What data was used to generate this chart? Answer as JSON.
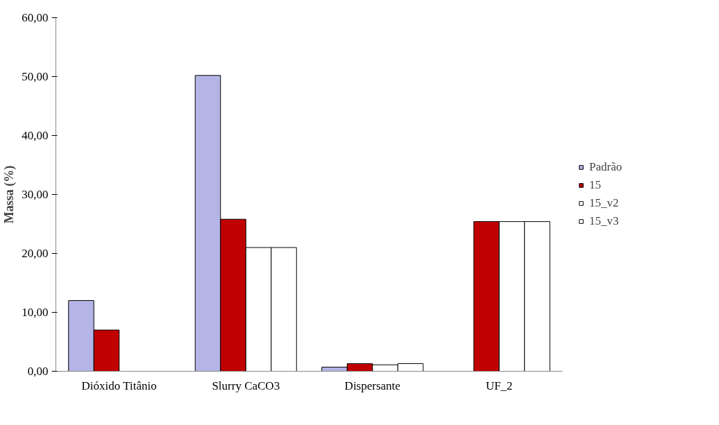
{
  "chart_data": {
    "type": "bar",
    "ylabel": "Massa (%)",
    "categories": [
      "Dióxido Titânio",
      "Slurry CaCO3",
      "Dispersante",
      "UF_2"
    ],
    "series": [
      {
        "name": "Padrão",
        "color": "#b4b4e6",
        "values": [
          12.0,
          50.2,
          0.7,
          null
        ]
      },
      {
        "name": "15",
        "color": "#c00000",
        "values": [
          7.0,
          25.8,
          1.3,
          25.4
        ]
      },
      {
        "name": "15_v2",
        "color": "#ffffff",
        "values": [
          null,
          21.0,
          1.1,
          25.4
        ]
      },
      {
        "name": "15_v3",
        "color": "#ffffff",
        "values": [
          null,
          21.0,
          1.3,
          25.4
        ]
      }
    ],
    "ylim": [
      0,
      60
    ],
    "yticks": [
      {
        "value": 0,
        "label": "0,00"
      },
      {
        "value": 10,
        "label": "10,00"
      },
      {
        "value": 20,
        "label": "20,00"
      },
      {
        "value": 30,
        "label": "30,00"
      },
      {
        "value": 40,
        "label": "40,00"
      },
      {
        "value": 50,
        "label": "50,00"
      },
      {
        "value": 60,
        "label": "60,00"
      }
    ],
    "grid": false,
    "legend": "right"
  }
}
